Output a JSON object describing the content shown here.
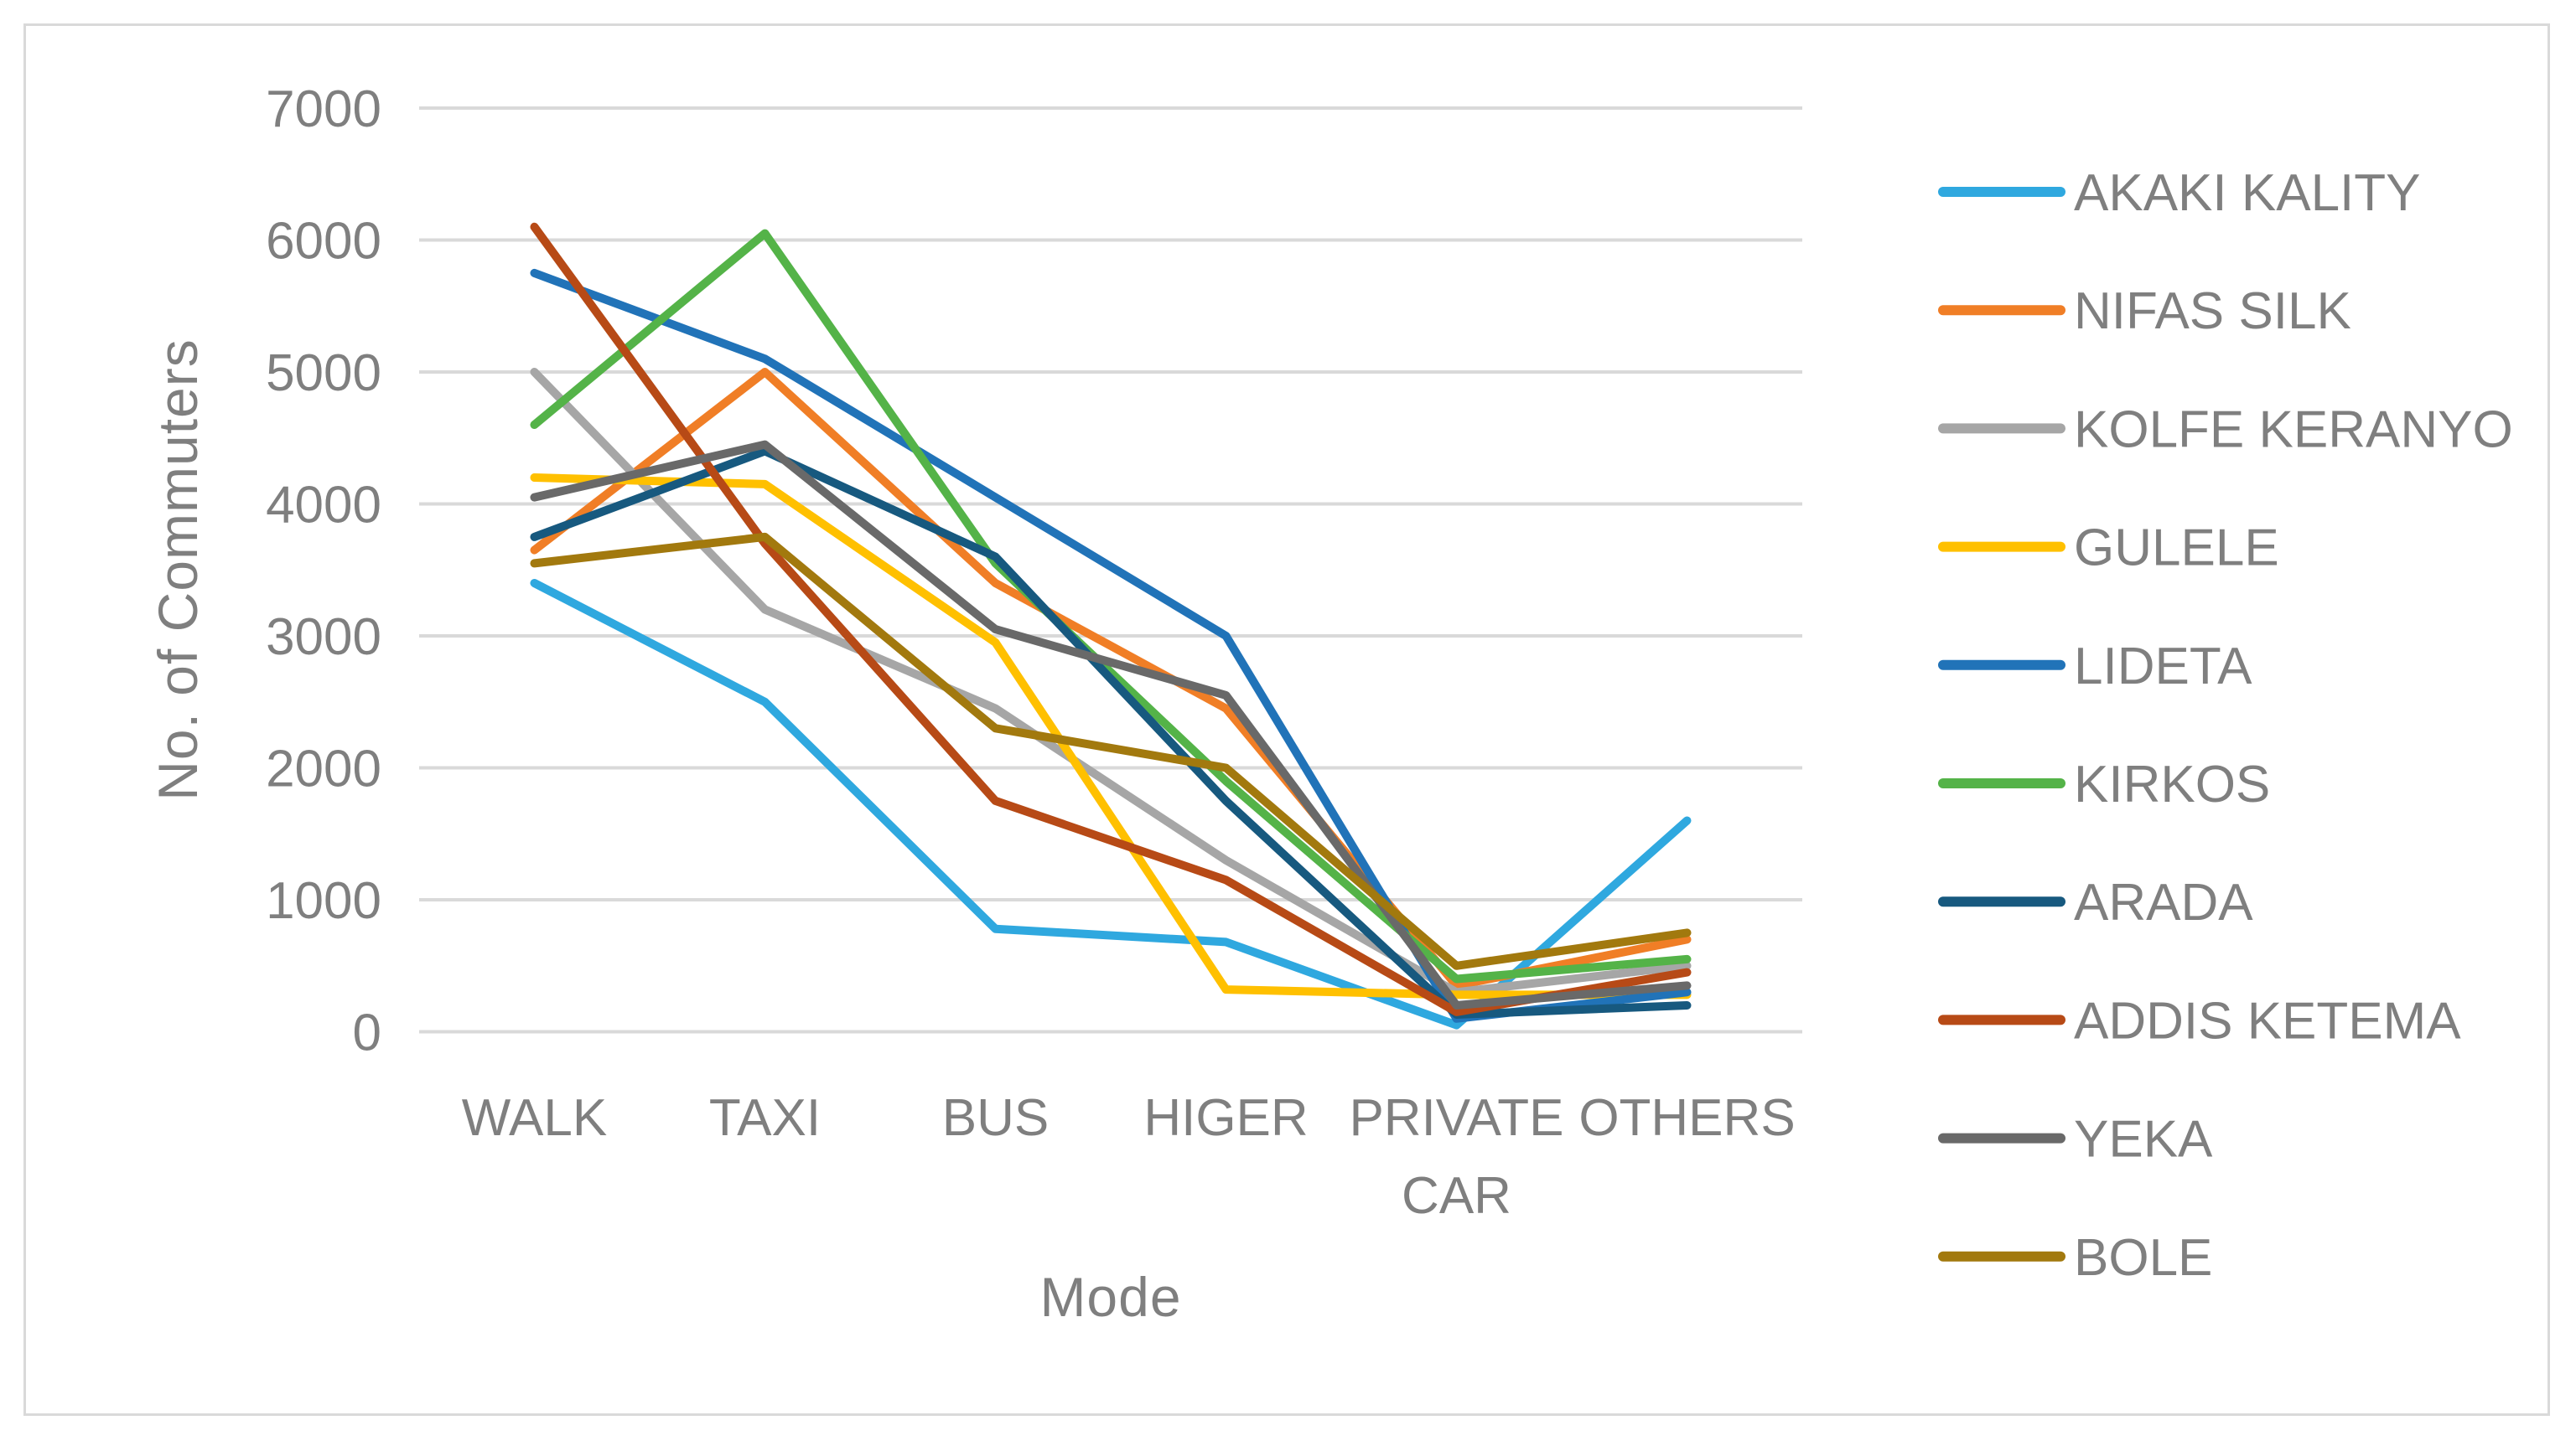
{
  "chart_data": {
    "type": "line",
    "title": "",
    "xlabel": "Mode",
    "ylabel": "No. of Commuters",
    "categories": [
      "WALK",
      "TAXI",
      "BUS",
      "HIGER",
      "PRIVATE CAR",
      "OTHERS"
    ],
    "y_ticks": [
      0,
      1000,
      2000,
      3000,
      4000,
      5000,
      6000,
      7000
    ],
    "ylim": [
      0,
      7000
    ],
    "grid": true,
    "legend_position": "right",
    "series": [
      {
        "name": "AKAKI KALITY",
        "color": "#2FA8DF",
        "values": [
          3400,
          2500,
          780,
          680,
          50,
          1600
        ]
      },
      {
        "name": "NIFAS SILK",
        "color": "#F07E26",
        "values": [
          3650,
          5000,
          3400,
          2450,
          350,
          700
        ]
      },
      {
        "name": "KOLFE KERANYO",
        "color": "#A6A6A6",
        "values": [
          5000,
          3200,
          2450,
          1300,
          300,
          500
        ]
      },
      {
        "name": "GULELE",
        "color": "#FFC000",
        "values": [
          4200,
          4150,
          2950,
          320,
          280,
          280
        ]
      },
      {
        "name": "LIDETA",
        "color": "#2173B8",
        "values": [
          5750,
          5100,
          4050,
          3000,
          100,
          300
        ]
      },
      {
        "name": "KIRKOS",
        "color": "#54B348",
        "values": [
          4600,
          6050,
          3550,
          1900,
          400,
          550
        ]
      },
      {
        "name": "ARADA",
        "color": "#17597F",
        "values": [
          3750,
          4400,
          3600,
          1750,
          130,
          200
        ]
      },
      {
        "name": "ADDIS KETEMA",
        "color": "#B74A16",
        "values": [
          6100,
          3700,
          1750,
          1150,
          150,
          450
        ]
      },
      {
        "name": "YEKA",
        "color": "#696969",
        "values": [
          4050,
          4450,
          3050,
          2550,
          200,
          350
        ]
      },
      {
        "name": "BOLE",
        "color": "#A2790E",
        "values": [
          3550,
          3750,
          2300,
          2000,
          500,
          750
        ]
      }
    ]
  },
  "colors": {
    "gridline": "#D9D9D9",
    "border": "#D9D9D9",
    "text": "#7F7F7F",
    "background": "#FFFFFF"
  }
}
